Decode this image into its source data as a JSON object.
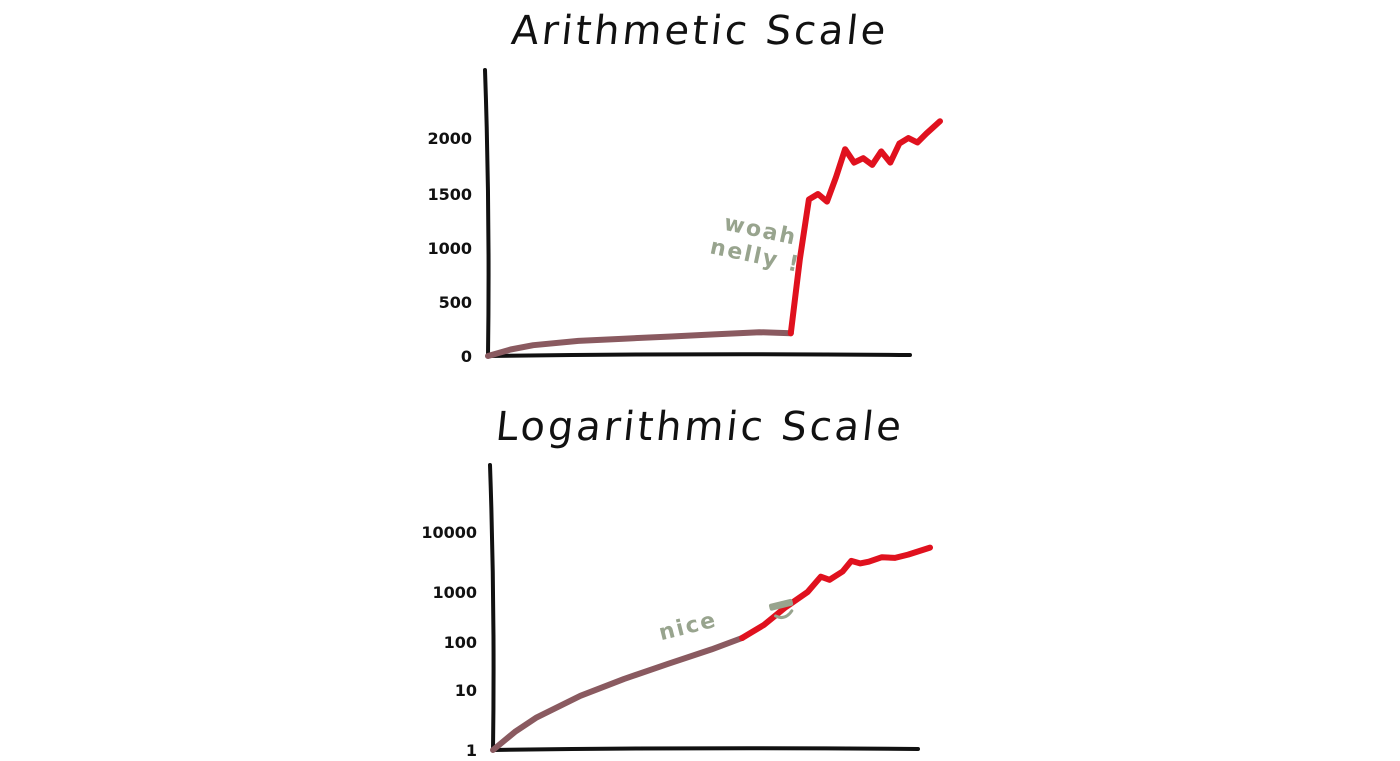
{
  "chart_data": [
    {
      "type": "line",
      "title": "Arithmetic Scale",
      "xlabel": "",
      "ylabel": "",
      "yscale": "linear",
      "ylim": [
        0,
        2400
      ],
      "xlim": [
        0,
        100
      ],
      "yticks": [
        0,
        500,
        1000,
        1500,
        2000
      ],
      "ytick_labels": [
        "0",
        "500",
        "1000",
        "1500",
        "2000"
      ],
      "grid": false,
      "series": [
        {
          "color": "#8a5a60",
          "x": [
            0,
            5,
            10,
            20,
            30,
            40,
            50,
            60,
            67
          ],
          "y": [
            0,
            60,
            100,
            140,
            160,
            180,
            200,
            220,
            210
          ]
        },
        {
          "color": "#e0111e",
          "x": [
            67,
            69,
            71,
            73,
            75,
            77,
            79,
            81,
            83,
            85,
            87,
            89,
            91,
            93,
            95,
            97,
            100
          ],
          "y": [
            210,
            900,
            1450,
            1500,
            1430,
            1650,
            1900,
            1780,
            1820,
            1760,
            1880,
            1780,
            1950,
            2000,
            1960,
            2040,
            2150
          ]
        }
      ],
      "annotations": [
        {
          "text_lines": [
            "woah",
            "nelly !"
          ],
          "x": 60,
          "y": 1100
        }
      ]
    },
    {
      "type": "line",
      "title": "Logarithmic Scale",
      "xlabel": "",
      "ylabel": "",
      "yscale": "log",
      "ylim": [
        1,
        100000
      ],
      "xlim": [
        0,
        100
      ],
      "yticks": [
        1,
        10,
        100,
        1000,
        10000
      ],
      "ytick_labels": [
        "1",
        "10",
        "100",
        "1000",
        "10000"
      ],
      "grid": false,
      "series": [
        {
          "color": "#8a5a60",
          "x": [
            0,
            5,
            10,
            20,
            30,
            40,
            50,
            57
          ],
          "y": [
            1,
            2,
            3.5,
            8,
            17,
            35,
            70,
            120
          ]
        },
        {
          "color": "#e0111e",
          "x": [
            57,
            62,
            67,
            72,
            75,
            77,
            80,
            82,
            84,
            86,
            89,
            92,
            95,
            100
          ],
          "y": [
            120,
            220,
            500,
            1000,
            1800,
            1600,
            2200,
            3300,
            3000,
            3200,
            3800,
            3700,
            4200,
            5500
          ]
        }
      ],
      "annotations": [
        {
          "text_lines": [
            "nice"
          ],
          "x": 45,
          "y": 150
        }
      ]
    }
  ]
}
